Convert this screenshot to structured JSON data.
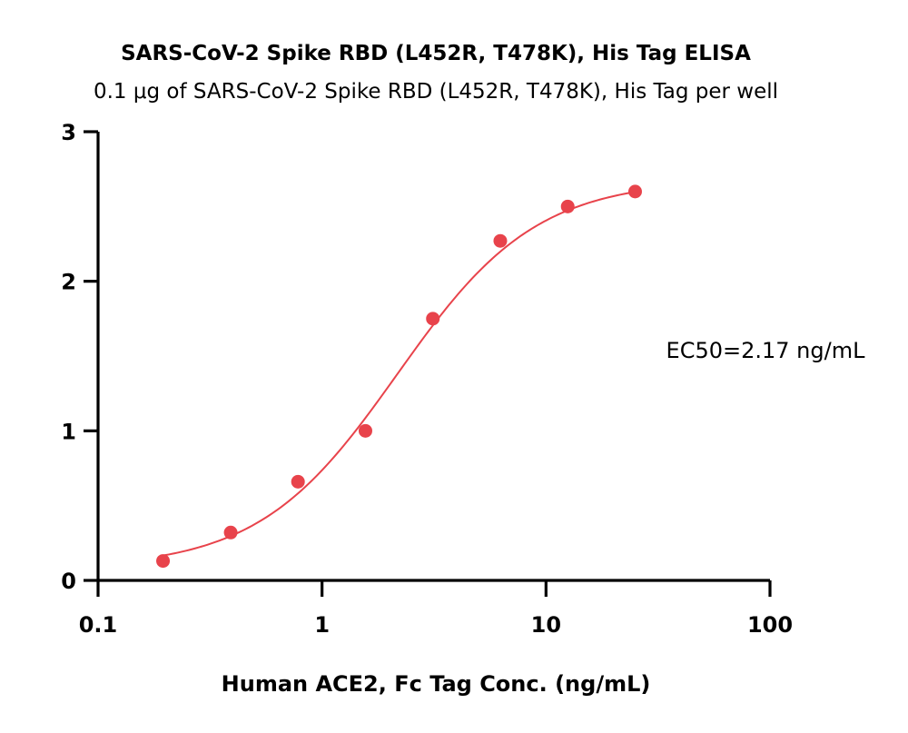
{
  "chart_data": {
    "type": "scatter",
    "title": "SARS-CoV-2 Spike RBD (L452R, T478K), His Tag ELISA",
    "subtitle": "0.1 μg of SARS-CoV-2 Spike RBD (L452R, T478K), His Tag per well",
    "xlabel": "Human ACE2, Fc Tag Conc. (ng/mL)",
    "ylabel": "",
    "x_scale": "log",
    "xlim": [
      0.1,
      100
    ],
    "ylim": [
      0,
      3
    ],
    "x_ticks": [
      0.1,
      1,
      10,
      100
    ],
    "x_tick_labels": [
      "0.1",
      "1",
      "10",
      "100"
    ],
    "y_ticks": [
      0,
      1,
      2,
      3
    ],
    "y_tick_labels": [
      "0",
      "1",
      "2",
      "3"
    ],
    "grid": false,
    "legend": "none",
    "series": [
      {
        "color": "#e8434b",
        "x": [
          0.195,
          0.391,
          0.781,
          1.5625,
          3.125,
          6.25,
          12.5,
          25
        ],
        "y": [
          0.13,
          0.32,
          0.66,
          1.0,
          1.75,
          2.27,
          2.5,
          2.6
        ]
      }
    ],
    "fit_curve": {
      "model": "4PL",
      "bottom": 0.08,
      "top": 2.68,
      "ec50": 2.17,
      "hill": 1.4,
      "x_range": [
        0.195,
        25
      ],
      "color": "#e8434b"
    },
    "annotation": "EC50=2.17 ng/mL"
  }
}
